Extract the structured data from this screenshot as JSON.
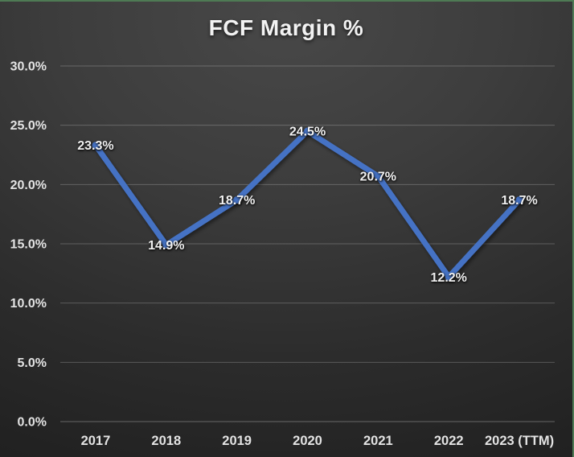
{
  "chart_data": {
    "type": "line",
    "title": "FCF Margin %",
    "categories": [
      "2017",
      "2018",
      "2019",
      "2020",
      "2021",
      "2022",
      "2023 (TTM)"
    ],
    "series": [
      {
        "name": "FCF Margin %",
        "values": [
          23.3,
          14.9,
          18.7,
          24.5,
          20.7,
          12.2,
          18.7
        ]
      }
    ],
    "data_labels": [
      "23.3%",
      "14.9%",
      "18.7%",
      "24.5%",
      "20.7%",
      "12.2%",
      "18.7%"
    ],
    "xlabel": "",
    "ylabel": "",
    "ylim": [
      0,
      30
    ],
    "y_tick_step": 5,
    "y_tick_labels": [
      "0.0%",
      "5.0%",
      "10.0%",
      "15.0%",
      "20.0%",
      "25.0%",
      "30.0%"
    ],
    "grid": true,
    "legend_position": "none",
    "colors": {
      "line": "#4472C4",
      "gridline": "rgba(255,255,255,0.22)",
      "axis_line": "rgba(255,255,255,0.30)",
      "text": "#e3e3e3",
      "title_text": "#f2f2f2",
      "chart_border": "#4e7a54"
    }
  }
}
